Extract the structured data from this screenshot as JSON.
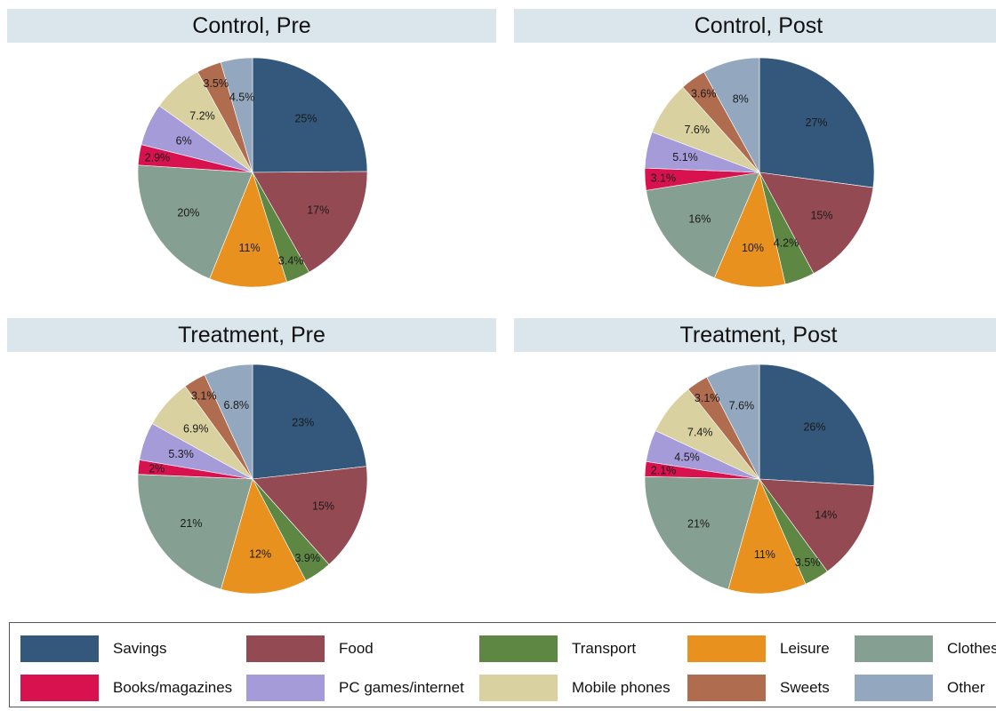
{
  "colors": {
    "Savings": "#33587c",
    "Food": "#944a53",
    "Transport": "#5e8743",
    "Leisure": "#e8911e",
    "Clothes": "#85a093",
    "Books/magazines": "#d8124f",
    "PC games/internet": "#a59bd8",
    "Mobile phones": "#d9d19f",
    "Sweets": "#b06c4f",
    "Other": "#93a8bf"
  },
  "legend": {
    "items": [
      "Savings",
      "Food",
      "Transport",
      "Leisure",
      "Clothes",
      "Books/magazines",
      "PC games/internet",
      "Mobile phones",
      "Sweets",
      "Other"
    ]
  },
  "chart_data": [
    {
      "type": "pie",
      "title": "Control, Pre",
      "categories": [
        "Savings",
        "Food",
        "Transport",
        "Leisure",
        "Clothes",
        "Books/magazines",
        "PC games/internet",
        "Mobile phones",
        "Sweets",
        "Other"
      ],
      "values": [
        25,
        17,
        3.4,
        11,
        20,
        2.9,
        6,
        7.2,
        3.5,
        4.5
      ],
      "labels": [
        "25%",
        "17%",
        "3.4%",
        "11%",
        "20%",
        "2.9%",
        "6%",
        "7.2%",
        "3.5%",
        "4.5%"
      ]
    },
    {
      "type": "pie",
      "title": "Control, Post",
      "categories": [
        "Savings",
        "Food",
        "Transport",
        "Leisure",
        "Clothes",
        "Books/magazines",
        "PC games/internet",
        "Mobile phones",
        "Sweets",
        "Other"
      ],
      "values": [
        27,
        15,
        4.2,
        10,
        16,
        3.1,
        5.1,
        7.6,
        3.6,
        8
      ],
      "labels": [
        "27%",
        "15%",
        "4.2%",
        "10%",
        "16%",
        "3.1%",
        "5.1%",
        "7.6%",
        "3.6%",
        "8%"
      ]
    },
    {
      "type": "pie",
      "title": "Treatment, Pre",
      "categories": [
        "Savings",
        "Food",
        "Transport",
        "Leisure",
        "Clothes",
        "Books/magazines",
        "PC games/internet",
        "Mobile phones",
        "Sweets",
        "Other"
      ],
      "values": [
        23,
        15,
        3.9,
        12,
        21,
        2,
        5.3,
        6.9,
        3.1,
        6.8
      ],
      "labels": [
        "23%",
        "15%",
        "3.9%",
        "12%",
        "21%",
        "2%",
        "5.3%",
        "6.9%",
        "3.1%",
        "6.8%"
      ]
    },
    {
      "type": "pie",
      "title": "Treatment, Post",
      "categories": [
        "Savings",
        "Food",
        "Transport",
        "Leisure",
        "Clothes",
        "Books/magazines",
        "PC games/internet",
        "Mobile phones",
        "Sweets",
        "Other"
      ],
      "values": [
        26,
        14,
        3.5,
        11,
        21,
        2.1,
        4.5,
        7.4,
        3.1,
        7.6
      ],
      "labels": [
        "26%",
        "14%",
        "3.5%",
        "11%",
        "21%",
        "2.1%",
        "4.5%",
        "7.4%",
        "3.1%",
        "7.6%"
      ]
    }
  ]
}
